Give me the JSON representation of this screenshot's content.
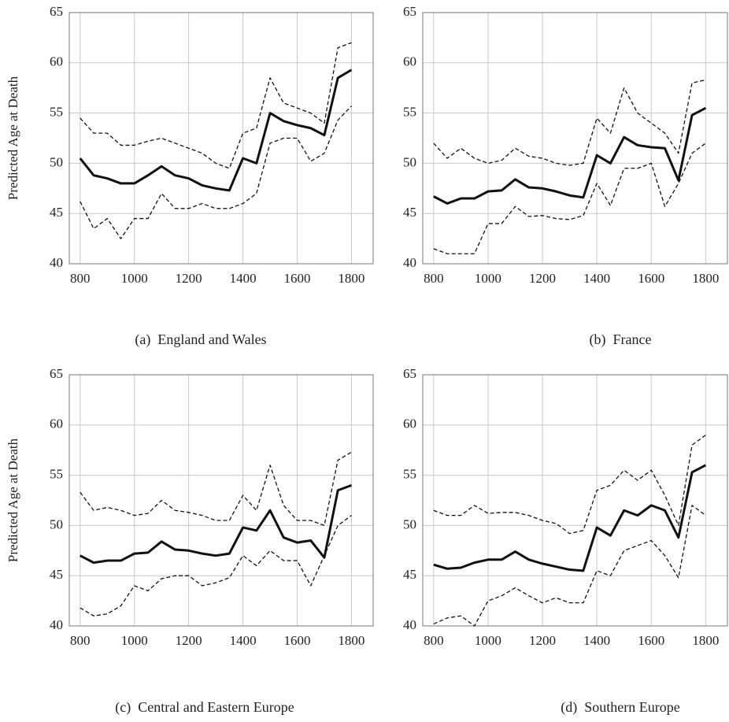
{
  "chart_data": [
    {
      "type": "line",
      "caption": "(a)  England and Wales",
      "ylabel": "Predicted Age at Death",
      "x": [
        800,
        850,
        900,
        950,
        1000,
        1050,
        1100,
        1150,
        1200,
        1250,
        1300,
        1350,
        1400,
        1450,
        1500,
        1550,
        1600,
        1650,
        1700,
        1750,
        1800
      ],
      "xlim": [
        760,
        1880
      ],
      "xticks": [
        800,
        1000,
        1200,
        1400,
        1600,
        1800
      ],
      "ylim": [
        40,
        65
      ],
      "yticks": [
        40,
        45,
        50,
        55,
        60,
        65
      ],
      "grid": true,
      "series": [
        {
          "color": "#111111",
          "style": "solid",
          "values": [
            50.5,
            48.8,
            48.5,
            48.0,
            48.0,
            48.8,
            49.7,
            48.8,
            48.5,
            47.8,
            47.5,
            47.3,
            50.5,
            50.0,
            55.0,
            54.2,
            53.8,
            53.5,
            52.8,
            58.5,
            59.3
          ]
        },
        {
          "color": "#111111",
          "style": "dashed",
          "values": [
            54.5,
            53.0,
            53.0,
            51.8,
            51.8,
            52.2,
            52.5,
            52.0,
            51.5,
            51.0,
            50.0,
            49.5,
            53.0,
            53.5,
            58.5,
            56.0,
            55.5,
            55.0,
            54.0,
            61.5,
            62.0
          ]
        },
        {
          "color": "#111111",
          "style": "dashed",
          "values": [
            46.2,
            43.5,
            44.5,
            42.5,
            44.5,
            44.5,
            47.0,
            45.5,
            45.5,
            46.0,
            45.5,
            45.5,
            46.0,
            47.0,
            52.0,
            52.5,
            52.5,
            50.2,
            51.0,
            54.3,
            55.7
          ]
        }
      ]
    },
    {
      "type": "line",
      "caption": "(b)  France",
      "x": [
        800,
        850,
        900,
        950,
        1000,
        1050,
        1100,
        1150,
        1200,
        1250,
        1300,
        1350,
        1400,
        1450,
        1500,
        1550,
        1600,
        1650,
        1700,
        1750,
        1800
      ],
      "xlim": [
        760,
        1880
      ],
      "xticks": [
        800,
        1000,
        1200,
        1400,
        1600,
        1800
      ],
      "ylim": [
        40,
        65
      ],
      "yticks": [
        40,
        45,
        50,
        55,
        60,
        65
      ],
      "grid": true,
      "series": [
        {
          "color": "#111111",
          "style": "solid",
          "values": [
            46.7,
            46.0,
            46.5,
            46.5,
            47.2,
            47.3,
            48.4,
            47.6,
            47.5,
            47.2,
            46.8,
            46.6,
            50.8,
            50.0,
            52.6,
            51.8,
            51.6,
            51.5,
            48.3,
            54.8,
            55.5
          ]
        },
        {
          "color": "#111111",
          "style": "dashed",
          "values": [
            52.0,
            50.5,
            51.5,
            50.5,
            50.0,
            50.3,
            51.5,
            50.7,
            50.5,
            50.0,
            49.8,
            50.0,
            54.5,
            53.0,
            57.5,
            55.0,
            54.0,
            53.0,
            51.0,
            58.0,
            58.3
          ]
        },
        {
          "color": "#111111",
          "style": "dashed",
          "values": [
            41.5,
            41.0,
            41.0,
            41.0,
            44.0,
            44.0,
            45.7,
            44.7,
            44.8,
            44.5,
            44.4,
            44.8,
            48.0,
            45.8,
            49.5,
            49.5,
            50.0,
            45.7,
            48.0,
            51.0,
            52.0
          ]
        }
      ]
    },
    {
      "type": "line",
      "caption": "(c)  Central and Eastern Europe",
      "ylabel": "Predicted Age at Death",
      "x": [
        800,
        850,
        900,
        950,
        1000,
        1050,
        1100,
        1150,
        1200,
        1250,
        1300,
        1350,
        1400,
        1450,
        1500,
        1550,
        1600,
        1650,
        1700,
        1750,
        1800
      ],
      "xlim": [
        760,
        1880
      ],
      "xticks": [
        800,
        1000,
        1200,
        1400,
        1600,
        1800
      ],
      "ylim": [
        40,
        65
      ],
      "yticks": [
        40,
        45,
        50,
        55,
        60,
        65
      ],
      "grid": true,
      "series": [
        {
          "color": "#111111",
          "style": "solid",
          "values": [
            47.0,
            46.3,
            46.5,
            46.5,
            47.2,
            47.3,
            48.4,
            47.6,
            47.5,
            47.2,
            47.0,
            47.2,
            49.8,
            49.5,
            51.5,
            48.8,
            48.3,
            48.5,
            46.8,
            53.5,
            54.0
          ]
        },
        {
          "color": "#111111",
          "style": "dashed",
          "values": [
            53.3,
            51.5,
            51.8,
            51.5,
            51.0,
            51.2,
            52.5,
            51.5,
            51.3,
            51.0,
            50.5,
            50.5,
            53.0,
            51.5,
            56.0,
            52.0,
            50.5,
            50.5,
            50.0,
            56.5,
            57.3
          ]
        },
        {
          "color": "#111111",
          "style": "dashed",
          "values": [
            41.8,
            41.0,
            41.2,
            42.0,
            44.0,
            43.5,
            44.7,
            45.0,
            45.0,
            44.0,
            44.3,
            44.8,
            47.0,
            46.0,
            47.5,
            46.5,
            46.5,
            44.0,
            47.0,
            50.0,
            51.0
          ]
        }
      ]
    },
    {
      "type": "line",
      "caption": "(d)  Southern Europe",
      "x": [
        800,
        850,
        900,
        950,
        1000,
        1050,
        1100,
        1150,
        1200,
        1250,
        1300,
        1350,
        1400,
        1450,
        1500,
        1550,
        1600,
        1650,
        1700,
        1750,
        1800
      ],
      "xlim": [
        760,
        1880
      ],
      "xticks": [
        800,
        1000,
        1200,
        1400,
        1600,
        1800
      ],
      "ylim": [
        40,
        65
      ],
      "yticks": [
        40,
        45,
        50,
        55,
        60,
        65
      ],
      "grid": true,
      "series": [
        {
          "color": "#111111",
          "style": "solid",
          "values": [
            46.1,
            45.7,
            45.8,
            46.3,
            46.6,
            46.6,
            47.4,
            46.6,
            46.2,
            45.9,
            45.6,
            45.5,
            49.8,
            49.0,
            51.5,
            51.0,
            52.0,
            51.5,
            48.8,
            55.3,
            56.0
          ]
        },
        {
          "color": "#111111",
          "style": "dashed",
          "values": [
            51.5,
            51.0,
            51.0,
            52.0,
            51.2,
            51.3,
            51.3,
            51.0,
            50.5,
            50.2,
            49.2,
            49.5,
            53.5,
            54.0,
            55.5,
            54.5,
            55.5,
            53.0,
            50.0,
            58.0,
            59.0
          ]
        },
        {
          "color": "#111111",
          "style": "dashed",
          "values": [
            40.2,
            40.8,
            41.0,
            40.0,
            42.5,
            43.0,
            43.8,
            43.0,
            42.3,
            42.8,
            42.3,
            42.3,
            45.5,
            45.0,
            47.5,
            48.0,
            48.5,
            47.0,
            44.8,
            52.0,
            51.0
          ]
        }
      ]
    }
  ]
}
